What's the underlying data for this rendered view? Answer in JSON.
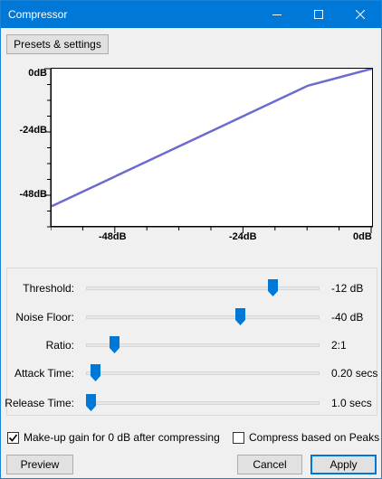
{
  "window": {
    "title": "Compressor"
  },
  "toolbar": {
    "presets_label": "Presets & settings"
  },
  "graph": {
    "y_ticks": [
      "0dB",
      "-24dB",
      "-48dB"
    ],
    "x_ticks": [
      "-48dB",
      "-24dB",
      "0dB"
    ]
  },
  "chart_data": {
    "type": "line",
    "xlim": [
      -60,
      0
    ],
    "ylim": [
      -60,
      0
    ],
    "series": [
      {
        "x": [
          -60,
          -12,
          0
        ],
        "y": [
          -52.5,
          -6.5,
          0
        ]
      }
    ],
    "line_color": "#6b6bcf"
  },
  "controls": [
    {
      "label": "Threshold:",
      "value": "-12 dB",
      "fraction": 0.8
    },
    {
      "label": "Noise Floor:",
      "value": "-40 dB",
      "fraction": 0.66
    },
    {
      "label": "Ratio:",
      "value": "2:1",
      "fraction": 0.12
    },
    {
      "label": "Attack Time:",
      "value": "0.20 secs",
      "fraction": 0.04
    },
    {
      "label": "Release Time:",
      "value": "1.0 secs",
      "fraction": 0.02
    }
  ],
  "options": {
    "makeup_label": "Make-up gain for 0 dB after compressing",
    "makeup_checked": true,
    "peaks_label": "Compress based on Peaks",
    "peaks_checked": false
  },
  "footer": {
    "preview_label": "Preview",
    "cancel_label": "Cancel",
    "apply_label": "Apply"
  },
  "colors": {
    "accent": "#0078d7",
    "curve": "#6b6bcf"
  }
}
